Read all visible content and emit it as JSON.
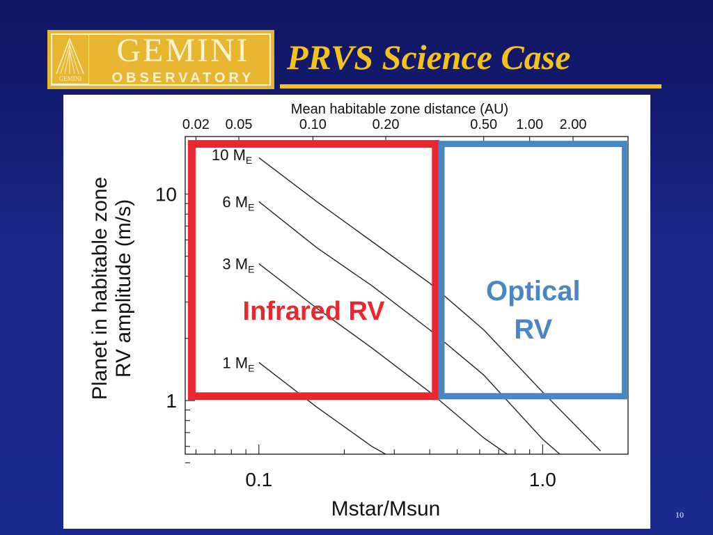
{
  "logo": {
    "name_top": "GEMINI",
    "name_bottom": "OBSERVATORY",
    "mark_text": "GEMINI"
  },
  "slide": {
    "title": "PRVS Science Case",
    "number": "10"
  },
  "colors": {
    "background": "#1a2585",
    "title": "#f5c21a",
    "logo": "#e8b530",
    "infrared_box": "#e8282e",
    "optical_box": "#4a86c6"
  },
  "chart_data": {
    "type": "line",
    "x_scale": "log",
    "y_scale": "log",
    "xlim": [
      0.055,
      2.0
    ],
    "ylim": [
      0.55,
      19.0
    ],
    "xlabel": "Mstar/Msun",
    "ylabel_line1": "Planet in habitable zone",
    "ylabel_line2": "RV amplitude (m/s)",
    "x_ticks": [
      {
        "value": 0.1,
        "label": "0.1"
      },
      {
        "value": 1.0,
        "label": "1.0"
      }
    ],
    "y_ticks": [
      {
        "value": 1,
        "label": "1"
      },
      {
        "value": 10,
        "label": "10"
      }
    ],
    "top_axis": {
      "label": "Mean habitable zone distance (AU)",
      "ticks": [
        {
          "x": 0.06,
          "label": "0.02"
        },
        {
          "x": 0.085,
          "label": "0.05"
        },
        {
          "x": 0.155,
          "label": "0.10"
        },
        {
          "x": 0.28,
          "label": "0.20"
        },
        {
          "x": 0.62,
          "label": "0.50"
        },
        {
          "x": 0.9,
          "label": "1.00"
        },
        {
          "x": 1.28,
          "label": "2.00"
        }
      ]
    },
    "series": [
      {
        "name": "10 M_E",
        "label_main": "10 M",
        "label_sub": "E",
        "label_x": 0.055,
        "label_y": 15.5,
        "x": [
          0.1,
          0.16,
          0.25,
          0.4,
          0.62,
          1.0,
          1.6
        ],
        "y": [
          15.0,
          9.2,
          5.9,
          3.7,
          2.2,
          1.1,
          0.57
        ]
      },
      {
        "name": "6 M_E",
        "label_main": "6 M",
        "label_sub": "E",
        "label_x": 0.06,
        "label_y": 9.2,
        "x": [
          0.1,
          0.16,
          0.25,
          0.4,
          0.62,
          1.0,
          1.15
        ],
        "y": [
          9.2,
          5.5,
          3.6,
          2.2,
          1.33,
          0.65,
          0.55
        ]
      },
      {
        "name": "3 M_E",
        "label_main": "3 M",
        "label_sub": "E",
        "label_x": 0.06,
        "label_y": 4.6,
        "x": [
          0.1,
          0.16,
          0.25,
          0.4,
          0.62,
          0.75
        ],
        "y": [
          4.6,
          2.8,
          1.8,
          1.1,
          0.66,
          0.55
        ]
      },
      {
        "name": "1 M_E",
        "label_main": "1 M",
        "label_sub": "E",
        "label_x": 0.06,
        "label_y": 1.53,
        "x": [
          0.1,
          0.16,
          0.25,
          0.28
        ],
        "y": [
          1.53,
          0.93,
          0.6,
          0.55
        ]
      }
    ],
    "regions": [
      {
        "label": "Infrared RV",
        "x_range": [
          0.058,
          0.42
        ],
        "y_range": [
          1.05,
          17.5
        ],
        "color": "#e8282e"
      },
      {
        "label_line1": "Optical",
        "label_line2": "RV",
        "x_range": [
          0.44,
          1.95
        ],
        "y_range": [
          1.05,
          17.5
        ],
        "color": "#4a86c6"
      }
    ]
  }
}
